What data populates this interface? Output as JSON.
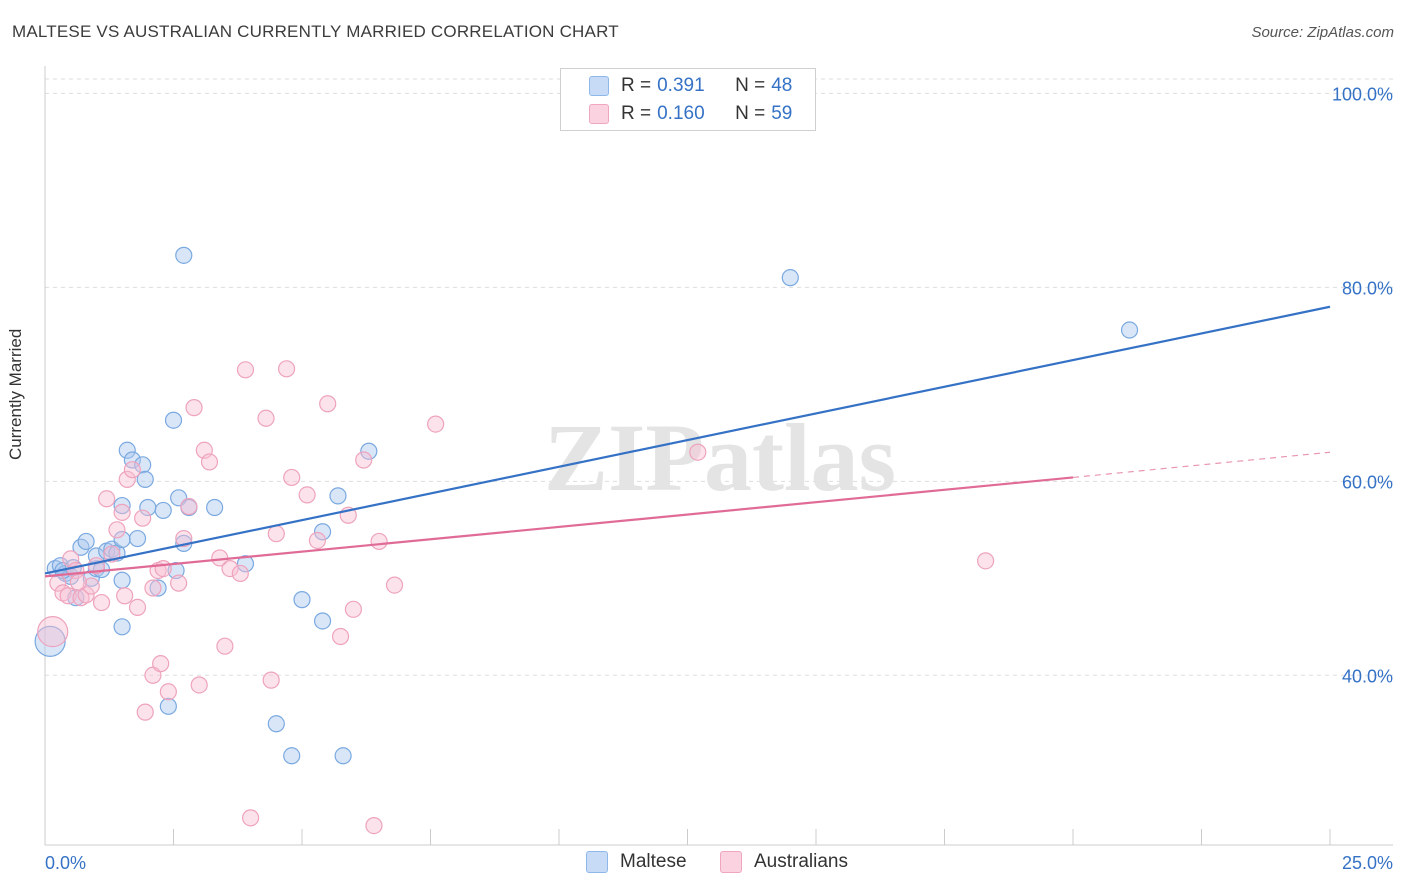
{
  "title": "MALTESE VS AUSTRALIAN CURRENTLY MARRIED CORRELATION CHART",
  "source": "Source: ZipAtlas.com",
  "watermark": "ZIPatlas",
  "legend": {
    "rows": [
      {
        "r_label": "R =",
        "r_value": "0.391",
        "n_label": "N =",
        "n_value": "48",
        "color": "#8fb8ea",
        "fill": "#c7dbf6"
      },
      {
        "r_label": "R =",
        "r_value": "0.160",
        "n_label": "N =",
        "n_value": "59",
        "color": "#f0a6be",
        "fill": "#fbd3e0"
      }
    ]
  },
  "bottom_legend": [
    "Maltese",
    "Australians"
  ],
  "chart_data": {
    "type": "scatter",
    "xlabel": "",
    "ylabel": "Currently Married",
    "xlim": [
      0,
      25
    ],
    "ylim": [
      22.5,
      102
    ],
    "x_tick_labels": [
      "0.0%",
      "25.0%"
    ],
    "y_ticks": [
      40,
      60,
      80,
      100
    ],
    "y_tick_labels": [
      "40.0%",
      "60.0%",
      "80.0%",
      "100.0%"
    ],
    "series": [
      {
        "name": "Maltese",
        "color": "#3572c6",
        "point_stroke": "#7aa9e0",
        "point_fill": "rgba(170,200,240,0.45)",
        "trend": {
          "x0": 0,
          "y0": 50.5,
          "x1": 25,
          "y1": 78.0
        },
        "points": [
          [
            0.1,
            43.5,
            2
          ],
          [
            0.2,
            51,
            1
          ],
          [
            0.3,
            51.3,
            1
          ],
          [
            0.4,
            50.5,
            1
          ],
          [
            0.5,
            50.2,
            1
          ],
          [
            0.6,
            48,
            1
          ],
          [
            0.7,
            53.2,
            1
          ],
          [
            0.8,
            53.8,
            1
          ],
          [
            0.9,
            50,
            1
          ],
          [
            1.0,
            51,
            1
          ],
          [
            1.0,
            52.3,
            1
          ],
          [
            1.2,
            52.8,
            1
          ],
          [
            1.3,
            53,
            1
          ],
          [
            1.4,
            52.6,
            1
          ],
          [
            1.5,
            49.8,
            1
          ],
          [
            1.5,
            54,
            1
          ],
          [
            1.5,
            57.5,
            1
          ],
          [
            1.5,
            45,
            1
          ],
          [
            1.6,
            63.2,
            1
          ],
          [
            1.7,
            62.2,
            1
          ],
          [
            1.8,
            54.1,
            1
          ],
          [
            1.9,
            61.7,
            1
          ],
          [
            1.95,
            60.2,
            1
          ],
          [
            2.0,
            57.3,
            1
          ],
          [
            2.2,
            49,
            1
          ],
          [
            2.3,
            57,
            1
          ],
          [
            2.4,
            36.8,
            1
          ],
          [
            2.5,
            66.3,
            1
          ],
          [
            2.55,
            50.8,
            1
          ],
          [
            2.6,
            58.3,
            1
          ],
          [
            2.7,
            83.3,
            1
          ],
          [
            2.7,
            53.6,
            1
          ],
          [
            2.8,
            57.3,
            1
          ],
          [
            3.3,
            57.3,
            1
          ],
          [
            3.9,
            51.5,
            1
          ],
          [
            4.5,
            35,
            1
          ],
          [
            4.8,
            31.7,
            1
          ],
          [
            5.0,
            47.8,
            1
          ],
          [
            5.4,
            45.6,
            1
          ],
          [
            5.4,
            54.8,
            1
          ],
          [
            5.7,
            58.5,
            1
          ],
          [
            5.8,
            31.7,
            1
          ],
          [
            6.3,
            63.1,
            1
          ],
          [
            14.5,
            81,
            1
          ],
          [
            21.1,
            75.6,
            1
          ],
          [
            0.35,
            50.8,
            1
          ],
          [
            0.55,
            51.1,
            1
          ],
          [
            1.1,
            50.9,
            1
          ]
        ]
      },
      {
        "name": "Australians",
        "color": "#e06b96",
        "point_stroke": "#eea3bd",
        "point_fill": "rgba(248,190,210,0.45)",
        "trend": {
          "x0": 0,
          "y0": 50.2,
          "x1": 20,
          "y1": 60.4
        },
        "trend_dashed": {
          "x0": 20,
          "y0": 60.4,
          "x1": 25,
          "y1": 63.0
        },
        "points": [
          [
            0.15,
            44.5,
            2
          ],
          [
            0.25,
            49.5,
            1
          ],
          [
            0.35,
            48.5,
            1
          ],
          [
            0.45,
            48.2,
            1
          ],
          [
            0.5,
            52,
            1
          ],
          [
            0.6,
            50.8,
            1
          ],
          [
            0.7,
            48,
            1
          ],
          [
            0.8,
            48.3,
            1
          ],
          [
            0.9,
            49.2,
            1
          ],
          [
            1.0,
            51.3,
            1
          ],
          [
            1.1,
            47.5,
            1
          ],
          [
            1.2,
            58.2,
            1
          ],
          [
            1.3,
            52.5,
            1
          ],
          [
            1.4,
            55,
            1
          ],
          [
            1.5,
            56.8,
            1
          ],
          [
            1.55,
            48.2,
            1
          ],
          [
            1.6,
            60.2,
            1
          ],
          [
            1.7,
            61.2,
            1
          ],
          [
            1.8,
            47,
            1
          ],
          [
            1.9,
            56.2,
            1
          ],
          [
            1.95,
            36.2,
            1
          ],
          [
            2.1,
            49,
            1
          ],
          [
            2.1,
            40,
            1
          ],
          [
            2.2,
            50.8,
            1
          ],
          [
            2.25,
            41.2,
            1
          ],
          [
            2.3,
            51,
            1
          ],
          [
            2.4,
            38.3,
            1
          ],
          [
            2.6,
            49.5,
            1
          ],
          [
            2.7,
            54.1,
            1
          ],
          [
            2.8,
            57.4,
            1
          ],
          [
            2.9,
            67.6,
            1
          ],
          [
            3.0,
            39,
            1
          ],
          [
            3.1,
            63.2,
            1
          ],
          [
            3.2,
            62,
            1
          ],
          [
            3.4,
            52.1,
            1
          ],
          [
            3.5,
            43,
            1
          ],
          [
            3.6,
            51,
            1
          ],
          [
            3.8,
            50.5,
            1
          ],
          [
            3.9,
            71.5,
            1
          ],
          [
            4.0,
            25.3,
            1
          ],
          [
            4.3,
            66.5,
            1
          ],
          [
            4.4,
            39.5,
            1
          ],
          [
            4.5,
            54.6,
            1
          ],
          [
            4.7,
            71.6,
            1
          ],
          [
            4.8,
            60.4,
            1
          ],
          [
            5.1,
            58.6,
            1
          ],
          [
            5.3,
            53.9,
            1
          ],
          [
            5.5,
            68,
            1
          ],
          [
            5.75,
            44,
            1
          ],
          [
            5.9,
            56.5,
            1
          ],
          [
            6.0,
            46.8,
            1
          ],
          [
            6.2,
            62.2,
            1
          ],
          [
            6.4,
            24.5,
            1
          ],
          [
            6.5,
            53.8,
            1
          ],
          [
            6.8,
            49.3,
            1
          ],
          [
            7.6,
            65.9,
            1
          ],
          [
            12.7,
            63,
            1
          ],
          [
            18.3,
            51.8,
            1
          ],
          [
            0.65,
            49.6,
            1
          ]
        ]
      }
    ]
  }
}
